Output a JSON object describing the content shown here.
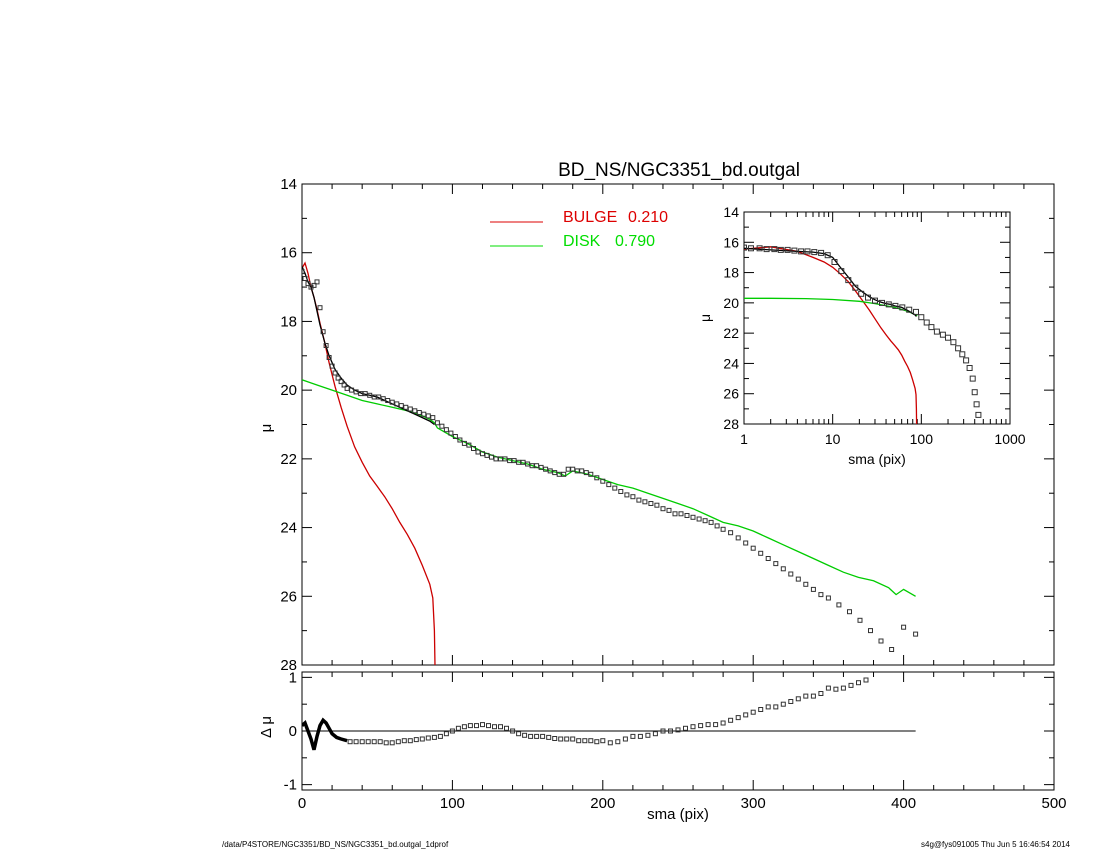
{
  "footer": {
    "left": "/data/P4STORE/NGC3351/BD_NS/NGC3351_bd.outgal_1dprof",
    "right": "s4g@fys091005  Thu Jun  5 16:46:54 2014"
  },
  "chart_data": [
    {
      "type": "scatter",
      "title": "BD_NS/NGC3351_bd.outgal",
      "xlabel": "",
      "ylabel": "μ",
      "xlim": [
        0,
        500
      ],
      "ylim": [
        28,
        14
      ],
      "y_inverted": true,
      "yticks": [
        14,
        16,
        18,
        20,
        22,
        24,
        26,
        28
      ],
      "legend": {
        "placement": "top-center",
        "entries": [
          {
            "label": "BULGE",
            "value": "0.210",
            "color": "#dd0000"
          },
          {
            "label": "DISK",
            "value": "0.790",
            "color": "#00dd00"
          }
        ]
      },
      "series": [
        {
          "name": "BULGE",
          "kind": "line",
          "color": "#cc0000",
          "x": [
            0,
            2,
            4,
            6,
            8,
            10,
            12,
            15,
            18,
            22,
            26,
            30,
            35,
            40,
            45,
            50,
            55,
            60,
            65,
            70,
            75,
            80,
            85,
            87,
            88,
            88.5
          ],
          "y": [
            16.45,
            16.3,
            16.6,
            17.0,
            17.3,
            17.65,
            18.05,
            18.6,
            19.2,
            19.9,
            20.5,
            21.05,
            21.65,
            22.1,
            22.5,
            22.8,
            23.1,
            23.45,
            23.85,
            24.2,
            24.6,
            25.1,
            25.65,
            26.05,
            27.0,
            28.2
          ]
        },
        {
          "name": "DISK",
          "kind": "line",
          "color": "#00cc00",
          "x": [
            0,
            10,
            20,
            30,
            40,
            50,
            60,
            70,
            80,
            85,
            88,
            90,
            100,
            110,
            120,
            130,
            140,
            150,
            160,
            170,
            175,
            180,
            190,
            200,
            210,
            220,
            230,
            240,
            250,
            260,
            270,
            280,
            290,
            300,
            310,
            320,
            330,
            340,
            350,
            360,
            370,
            380,
            390,
            395,
            400,
            408
          ],
          "y": [
            19.7,
            19.85,
            20.0,
            20.15,
            20.3,
            20.4,
            20.5,
            20.6,
            20.75,
            20.85,
            20.95,
            21.1,
            21.35,
            21.55,
            21.8,
            21.95,
            22.05,
            22.15,
            22.3,
            22.4,
            22.5,
            22.35,
            22.45,
            22.6,
            22.75,
            22.85,
            23.0,
            23.15,
            23.3,
            23.45,
            23.65,
            23.85,
            23.95,
            24.1,
            24.3,
            24.5,
            24.7,
            24.9,
            25.1,
            25.3,
            25.45,
            25.55,
            25.75,
            25.95,
            25.8,
            26.0
          ]
        },
        {
          "name": "",
          "kind": "line",
          "color": "#000000",
          "x": [
            0,
            2,
            4,
            6,
            8,
            10,
            12,
            15,
            18,
            22,
            26,
            30,
            35,
            40,
            45,
            50,
            55,
            60,
            65,
            70,
            75,
            80,
            85,
            88
          ],
          "y": [
            16.4,
            16.6,
            16.85,
            17.0,
            17.3,
            17.7,
            18.1,
            18.6,
            19.0,
            19.4,
            19.65,
            19.85,
            20.0,
            20.1,
            20.15,
            20.2,
            20.3,
            20.4,
            20.5,
            20.6,
            20.7,
            20.8,
            20.9,
            21.0
          ]
        },
        {
          "name": "",
          "kind": "markers",
          "color": "#333333",
          "x": [
            0,
            2,
            4,
            6,
            8,
            10,
            12,
            14,
            16,
            18,
            20,
            22,
            24,
            26,
            28,
            30,
            33,
            36,
            39,
            42,
            45,
            48,
            51,
            54,
            57,
            60,
            63,
            66,
            69,
            72,
            75,
            78,
            81,
            84,
            87,
            90,
            93,
            96,
            99,
            102,
            105,
            108,
            111,
            114,
            117,
            120,
            123,
            126,
            129,
            132,
            135,
            138,
            141,
            144,
            147,
            150,
            153,
            156,
            159,
            162,
            165,
            168,
            171,
            174,
            177,
            180,
            183,
            186,
            189,
            192,
            196,
            200,
            204,
            208,
            212,
            216,
            220,
            224,
            228,
            232,
            236,
            240,
            244,
            248,
            252,
            256,
            260,
            264,
            268,
            272,
            276,
            280,
            285,
            290,
            295,
            300,
            305,
            310,
            315,
            320,
            325,
            330,
            335,
            340,
            345,
            350,
            357,
            364,
            371,
            378,
            385,
            392,
            400,
            408
          ],
          "y": [
            16.55,
            16.75,
            16.9,
            17.0,
            16.95,
            16.85,
            17.6,
            18.3,
            18.7,
            19.05,
            19.3,
            19.5,
            19.65,
            19.75,
            19.85,
            19.95,
            20.0,
            20.05,
            20.1,
            20.1,
            20.15,
            20.2,
            20.2,
            20.25,
            20.3,
            20.35,
            20.4,
            20.45,
            20.5,
            20.55,
            20.6,
            20.65,
            20.7,
            20.75,
            20.8,
            20.95,
            21.05,
            21.15,
            21.25,
            21.35,
            21.45,
            21.55,
            21.6,
            21.7,
            21.8,
            21.85,
            21.9,
            21.95,
            22.0,
            22.0,
            22.0,
            22.05,
            22.05,
            22.1,
            22.1,
            22.15,
            22.2,
            22.2,
            22.25,
            22.3,
            22.35,
            22.4,
            22.45,
            22.45,
            22.3,
            22.3,
            22.35,
            22.35,
            22.4,
            22.45,
            22.55,
            22.65,
            22.75,
            22.85,
            22.95,
            23.05,
            23.1,
            23.2,
            23.25,
            23.3,
            23.35,
            23.45,
            23.5,
            23.6,
            23.6,
            23.65,
            23.7,
            23.75,
            23.8,
            23.85,
            23.95,
            24.05,
            24.15,
            24.3,
            24.45,
            24.6,
            24.75,
            24.9,
            25.05,
            25.2,
            25.35,
            25.5,
            25.65,
            25.8,
            25.95,
            26.05,
            26.25,
            26.45,
            26.7,
            27.0,
            27.3,
            27.55,
            26.9,
            27.1
          ]
        }
      ]
    },
    {
      "type": "scatter",
      "title": "",
      "xlabel": "sma (pix)",
      "ylabel": "Δ μ",
      "xlim": [
        0,
        500
      ],
      "ylim": [
        -1.1,
        1.1
      ],
      "yticks": [
        -1,
        0,
        1
      ],
      "xticks": [
        0,
        100,
        200,
        300,
        400,
        500
      ],
      "reference_line": {
        "y": 0,
        "x": [
          0,
          408
        ]
      },
      "series": [
        {
          "name": "",
          "kind": "line",
          "color": "#000000",
          "x": [
            0,
            2,
            4,
            6,
            8,
            10,
            12,
            14,
            16,
            18,
            20,
            23,
            26,
            30
          ],
          "y": [
            0.1,
            0.15,
            0.0,
            -0.15,
            -0.35,
            -0.1,
            0.1,
            0.2,
            0.15,
            0.05,
            -0.05,
            -0.12,
            -0.15,
            -0.18
          ]
        },
        {
          "name": "",
          "kind": "markers",
          "color": "#333333",
          "x": [
            32,
            36,
            40,
            44,
            48,
            52,
            56,
            60,
            64,
            68,
            72,
            76,
            80,
            84,
            88,
            92,
            96,
            100,
            104,
            108,
            112,
            116,
            120,
            124,
            128,
            132,
            136,
            140,
            144,
            148,
            152,
            156,
            160,
            164,
            168,
            172,
            176,
            180,
            184,
            188,
            192,
            196,
            200,
            205,
            210,
            215,
            220,
            225,
            230,
            235,
            240,
            245,
            250,
            255,
            260,
            265,
            270,
            275,
            280,
            285,
            290,
            295,
            300,
            305,
            310,
            315,
            320,
            325,
            330,
            335,
            340,
            345,
            350,
            355,
            360,
            365,
            370,
            375
          ],
          "y": [
            -0.2,
            -0.2,
            -0.2,
            -0.2,
            -0.2,
            -0.2,
            -0.22,
            -0.22,
            -0.2,
            -0.18,
            -0.18,
            -0.16,
            -0.15,
            -0.13,
            -0.12,
            -0.1,
            -0.05,
            0.0,
            0.05,
            0.08,
            0.1,
            0.1,
            0.12,
            0.1,
            0.08,
            0.08,
            0.05,
            0.0,
            -0.05,
            -0.08,
            -0.1,
            -0.1,
            -0.1,
            -0.12,
            -0.14,
            -0.15,
            -0.15,
            -0.15,
            -0.18,
            -0.18,
            -0.18,
            -0.2,
            -0.18,
            -0.22,
            -0.2,
            -0.15,
            -0.1,
            -0.1,
            -0.08,
            -0.05,
            0.0,
            0.0,
            0.02,
            0.05,
            0.08,
            0.1,
            0.12,
            0.12,
            0.15,
            0.2,
            0.25,
            0.3,
            0.35,
            0.4,
            0.45,
            0.45,
            0.5,
            0.55,
            0.6,
            0.65,
            0.65,
            0.7,
            0.8,
            0.78,
            0.8,
            0.85,
            0.9,
            0.95
          ]
        }
      ]
    },
    {
      "type": "scatter",
      "title": "",
      "xlabel": "sma (pix)",
      "ylabel": "μ",
      "x_scale": "log",
      "xlim": [
        1,
        1000
      ],
      "xticks": [
        1,
        10,
        100,
        1000
      ],
      "ylim": [
        28,
        14
      ],
      "y_inverted": true,
      "yticks": [
        14,
        16,
        18,
        20,
        22,
        24,
        26,
        28
      ],
      "placement": "top-right",
      "series": [
        {
          "name": "BULGE",
          "kind": "line",
          "color": "#cc0000",
          "x": [
            1,
            2,
            4,
            6,
            8,
            10,
            12,
            15,
            18,
            22,
            26,
            30,
            35,
            40,
            45,
            50,
            55,
            60,
            65,
            70,
            75,
            80,
            85,
            87,
            88,
            88.5
          ],
          "y": [
            16.45,
            16.3,
            16.6,
            17.0,
            17.3,
            17.65,
            18.05,
            18.6,
            19.2,
            19.9,
            20.5,
            21.05,
            21.65,
            22.1,
            22.5,
            22.8,
            23.1,
            23.45,
            23.85,
            24.2,
            24.6,
            25.1,
            25.65,
            26.05,
            27.0,
            28.0
          ]
        },
        {
          "name": "DISK",
          "kind": "line",
          "color": "#00cc00",
          "x": [
            1,
            2,
            5,
            10,
            20,
            30,
            50,
            70,
            90
          ],
          "y": [
            19.7,
            19.7,
            19.72,
            19.78,
            19.9,
            20.05,
            20.3,
            20.55,
            20.85
          ]
        },
        {
          "name": "",
          "kind": "line",
          "color": "#000000",
          "x": [
            1,
            2,
            4,
            6,
            8,
            10,
            12,
            15,
            18,
            22,
            26,
            30,
            35,
            40,
            45,
            50,
            55,
            60,
            65,
            70,
            75,
            80,
            85,
            88
          ],
          "y": [
            16.4,
            16.5,
            16.6,
            16.65,
            16.75,
            17.0,
            17.6,
            18.3,
            18.9,
            19.3,
            19.6,
            19.8,
            19.95,
            20.05,
            20.1,
            20.2,
            20.25,
            20.3,
            20.4,
            20.5,
            20.6,
            20.7,
            20.8,
            20.9
          ]
        },
        {
          "name": "",
          "kind": "markers",
          "color": "#333333",
          "x": [
            1,
            1.2,
            1.5,
            1.8,
            2.2,
            2.6,
            3.1,
            3.7,
            4.4,
            5.2,
            6.2,
            7.4,
            8.8,
            10.5,
            12.5,
            15,
            18,
            21,
            25,
            30,
            36,
            43,
            51,
            61,
            73,
            87,
            100,
            115,
            130,
            150,
            175,
            200,
            230,
            260,
            290,
            320,
            350,
            380,
            400,
            420,
            440
          ],
          "y": [
            16.35,
            16.4,
            16.4,
            16.45,
            16.45,
            16.5,
            16.5,
            16.55,
            16.6,
            16.6,
            16.65,
            16.7,
            16.85,
            17.3,
            17.9,
            18.5,
            19.0,
            19.4,
            19.65,
            19.85,
            20.0,
            20.1,
            20.2,
            20.3,
            20.45,
            20.6,
            20.95,
            21.3,
            21.6,
            21.9,
            22.1,
            22.3,
            22.6,
            23.0,
            23.4,
            23.8,
            24.3,
            25.0,
            25.9,
            26.7,
            27.4
          ]
        }
      ]
    }
  ]
}
